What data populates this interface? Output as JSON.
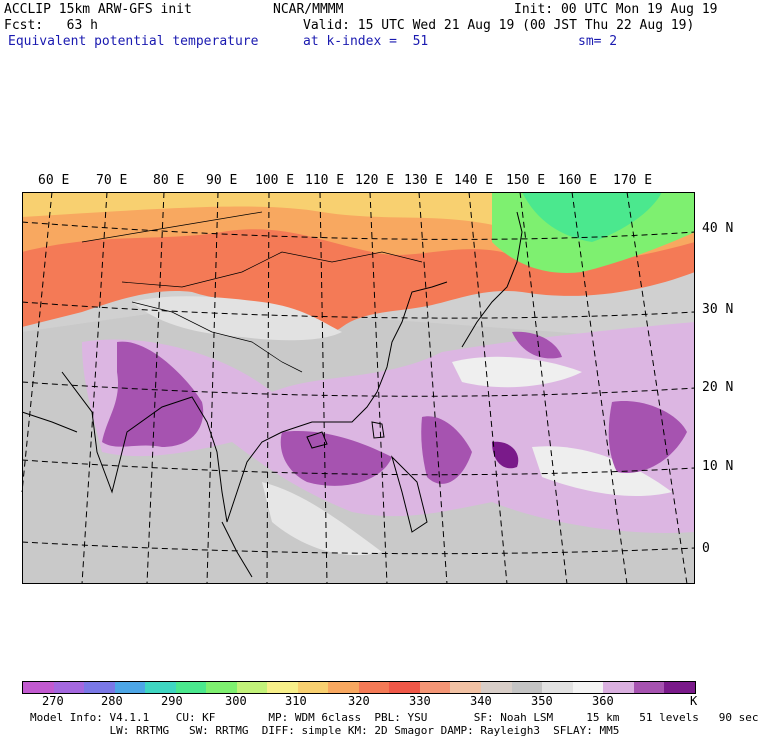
{
  "header": {
    "line1_left": "ACCLIP 15km ARW-GFS init",
    "line1_mid": "NCAR/MMMM",
    "line1_right": "Init: 00 UTC Mon 19 Aug 19",
    "line2_left": "Fcst:   63 h",
    "line2_right": "Valid: 15 UTC Wed 21 Aug 19 (00 JST Thu 22 Aug 19)",
    "line3_left": "Equivalent potential temperature",
    "line3_mid": "at k-index =  51",
    "line3_right": "sm= 2"
  },
  "lon_labels": [
    "60 E",
    "70 E",
    "80 E",
    "90 E",
    "100 E",
    "110 E",
    "120 E",
    "130 E",
    "140 E",
    "150 E",
    "160 E",
    "170 E"
  ],
  "lat_labels": [
    "40 N",
    "30 N",
    "20 N",
    "10 N",
    "0"
  ],
  "colorbar": {
    "unit": "K",
    "labels": [
      "270",
      "280",
      "290",
      "300",
      "310",
      "320",
      "330",
      "340",
      "350",
      "360"
    ],
    "colors": [
      "#c25ad0",
      "#a468df",
      "#7a78e6",
      "#4da6e6",
      "#3fd6c2",
      "#4be88e",
      "#7ef070",
      "#c2f27a",
      "#f7f08a",
      "#f8d070",
      "#f8a860",
      "#f47a56",
      "#f05848",
      "#f49676",
      "#f2c2a4",
      "#d8cec8",
      "#c4c4c4",
      "#e2e2e2",
      "#f4f4f4",
      "#dab0e0",
      "#a653b0",
      "#7a1a8a"
    ]
  },
  "footer": {
    "line1": "Model Info: V4.1.1    CU: KF        MP: WDM 6class  PBL: YSU       SF: Noah LSM     15 km   51 levels   90 sec",
    "line2": "            LW: RRTMG   SW: RRTMG  DIFF: simple KM: 2D Smagor DAMP: Rayleigh3  SFLAY: MM5"
  }
}
